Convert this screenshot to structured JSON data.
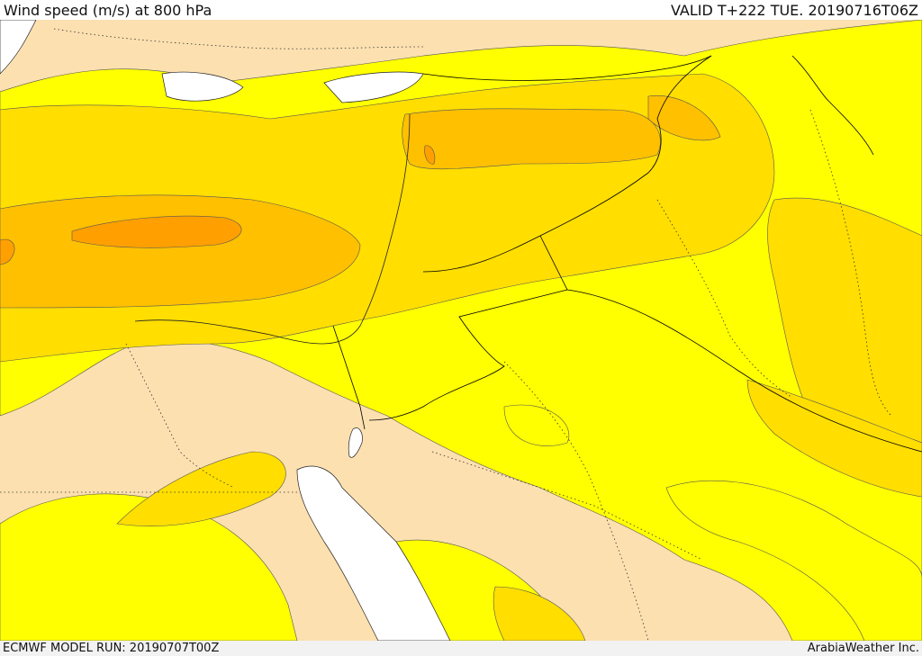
{
  "header": {
    "title": "Wind speed (m/s) at 800 hPa",
    "valid": "VALID T+222 TUE. 20190716T06Z"
  },
  "footer": {
    "model_run": "ECMWF MODEL RUN: 20190707T00Z",
    "credit": "ArabiaWeather Inc."
  },
  "colors": {
    "lightest": "#fde0b0",
    "yellow": "#ffff00",
    "gold": "#ffde00",
    "amber": "#ffc000",
    "orange": "#ffa000",
    "water": "#ffffff",
    "border": "#000000"
  }
}
